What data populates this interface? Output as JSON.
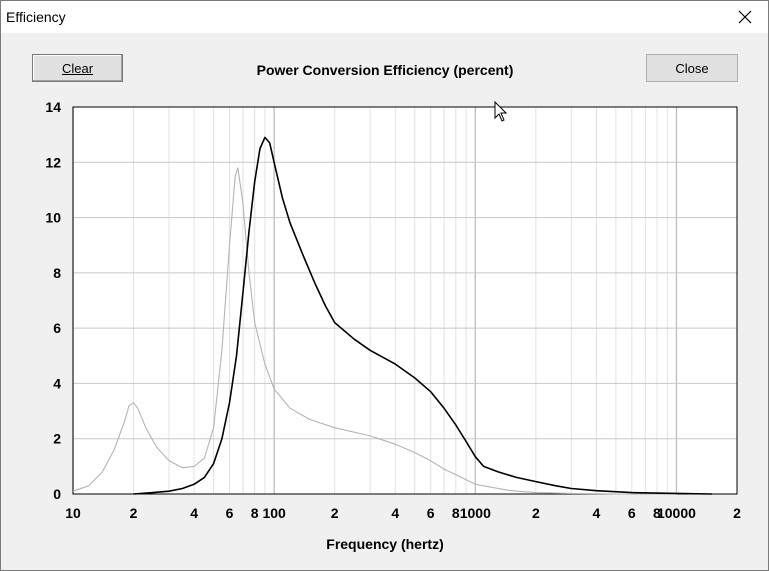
{
  "window": {
    "title": "Efficiency",
    "close_glyph": "✕"
  },
  "buttons": {
    "clear": "Clear",
    "close": "Close"
  },
  "chart_data": {
    "type": "line",
    "title": "Power Conversion Efficiency (percent)",
    "xlabel": "Frequency (hertz)",
    "ylabel": "",
    "x_scale": "log",
    "xlim": [
      10,
      20000
    ],
    "ylim": [
      0,
      14
    ],
    "grid": true,
    "x_ticks": [
      {
        "v": 10,
        "label": "10"
      },
      {
        "v": 20,
        "label": "2"
      },
      {
        "v": 40,
        "label": "4"
      },
      {
        "v": 60,
        "label": "6"
      },
      {
        "v": 80,
        "label": "8"
      },
      {
        "v": 100,
        "label": "100"
      },
      {
        "v": 200,
        "label": "2"
      },
      {
        "v": 400,
        "label": "4"
      },
      {
        "v": 600,
        "label": "6"
      },
      {
        "v": 800,
        "label": "8"
      },
      {
        "v": 1000,
        "label": "1000"
      },
      {
        "v": 2000,
        "label": "2"
      },
      {
        "v": 4000,
        "label": "4"
      },
      {
        "v": 6000,
        "label": "6"
      },
      {
        "v": 8000,
        "label": "8"
      },
      {
        "v": 10000,
        "label": "10000"
      },
      {
        "v": 20000,
        "label": "2"
      }
    ],
    "y_ticks": [
      0,
      2,
      4,
      6,
      8,
      10,
      12,
      14
    ],
    "series": [
      {
        "color": "#b4b4b4",
        "points": [
          [
            10,
            0.1
          ],
          [
            12,
            0.3
          ],
          [
            14,
            0.8
          ],
          [
            16,
            1.6
          ],
          [
            18,
            2.6
          ],
          [
            19,
            3.2
          ],
          [
            20,
            3.3
          ],
          [
            21,
            3.1
          ],
          [
            23,
            2.4
          ],
          [
            26,
            1.7
          ],
          [
            30,
            1.2
          ],
          [
            35,
            0.95
          ],
          [
            40,
            1.0
          ],
          [
            45,
            1.3
          ],
          [
            50,
            2.4
          ],
          [
            55,
            5.2
          ],
          [
            60,
            9.0
          ],
          [
            64,
            11.5
          ],
          [
            66,
            11.8
          ],
          [
            70,
            10.5
          ],
          [
            75,
            8.0
          ],
          [
            80,
            6.2
          ],
          [
            90,
            4.7
          ],
          [
            100,
            3.8
          ],
          [
            120,
            3.1
          ],
          [
            150,
            2.7
          ],
          [
            200,
            2.4
          ],
          [
            300,
            2.1
          ],
          [
            400,
            1.8
          ],
          [
            500,
            1.5
          ],
          [
            600,
            1.2
          ],
          [
            700,
            0.9
          ],
          [
            800,
            0.7
          ],
          [
            1000,
            0.35
          ],
          [
            1500,
            0.12
          ],
          [
            2000,
            0.05
          ],
          [
            3000,
            0.02
          ],
          [
            5000,
            0.0
          ],
          [
            10000,
            0.0
          ]
        ]
      },
      {
        "color": "#000000",
        "points": [
          [
            20,
            0.0
          ],
          [
            25,
            0.05
          ],
          [
            30,
            0.1
          ],
          [
            35,
            0.2
          ],
          [
            40,
            0.35
          ],
          [
            45,
            0.6
          ],
          [
            50,
            1.1
          ],
          [
            55,
            2.0
          ],
          [
            60,
            3.3
          ],
          [
            65,
            5.0
          ],
          [
            70,
            7.3
          ],
          [
            75,
            9.5
          ],
          [
            80,
            11.3
          ],
          [
            85,
            12.5
          ],
          [
            90,
            12.9
          ],
          [
            95,
            12.7
          ],
          [
            100,
            12.0
          ],
          [
            110,
            10.7
          ],
          [
            120,
            9.8
          ],
          [
            140,
            8.6
          ],
          [
            160,
            7.6
          ],
          [
            180,
            6.8
          ],
          [
            200,
            6.2
          ],
          [
            250,
            5.6
          ],
          [
            300,
            5.2
          ],
          [
            400,
            4.7
          ],
          [
            500,
            4.2
          ],
          [
            600,
            3.7
          ],
          [
            700,
            3.1
          ],
          [
            800,
            2.5
          ],
          [
            900,
            1.9
          ],
          [
            1000,
            1.35
          ],
          [
            1100,
            1.0
          ],
          [
            1300,
            0.8
          ],
          [
            1600,
            0.6
          ],
          [
            2000,
            0.45
          ],
          [
            2500,
            0.3
          ],
          [
            3000,
            0.2
          ],
          [
            4000,
            0.12
          ],
          [
            6000,
            0.05
          ],
          [
            10000,
            0.02
          ],
          [
            15000,
            0.0
          ]
        ]
      }
    ]
  }
}
